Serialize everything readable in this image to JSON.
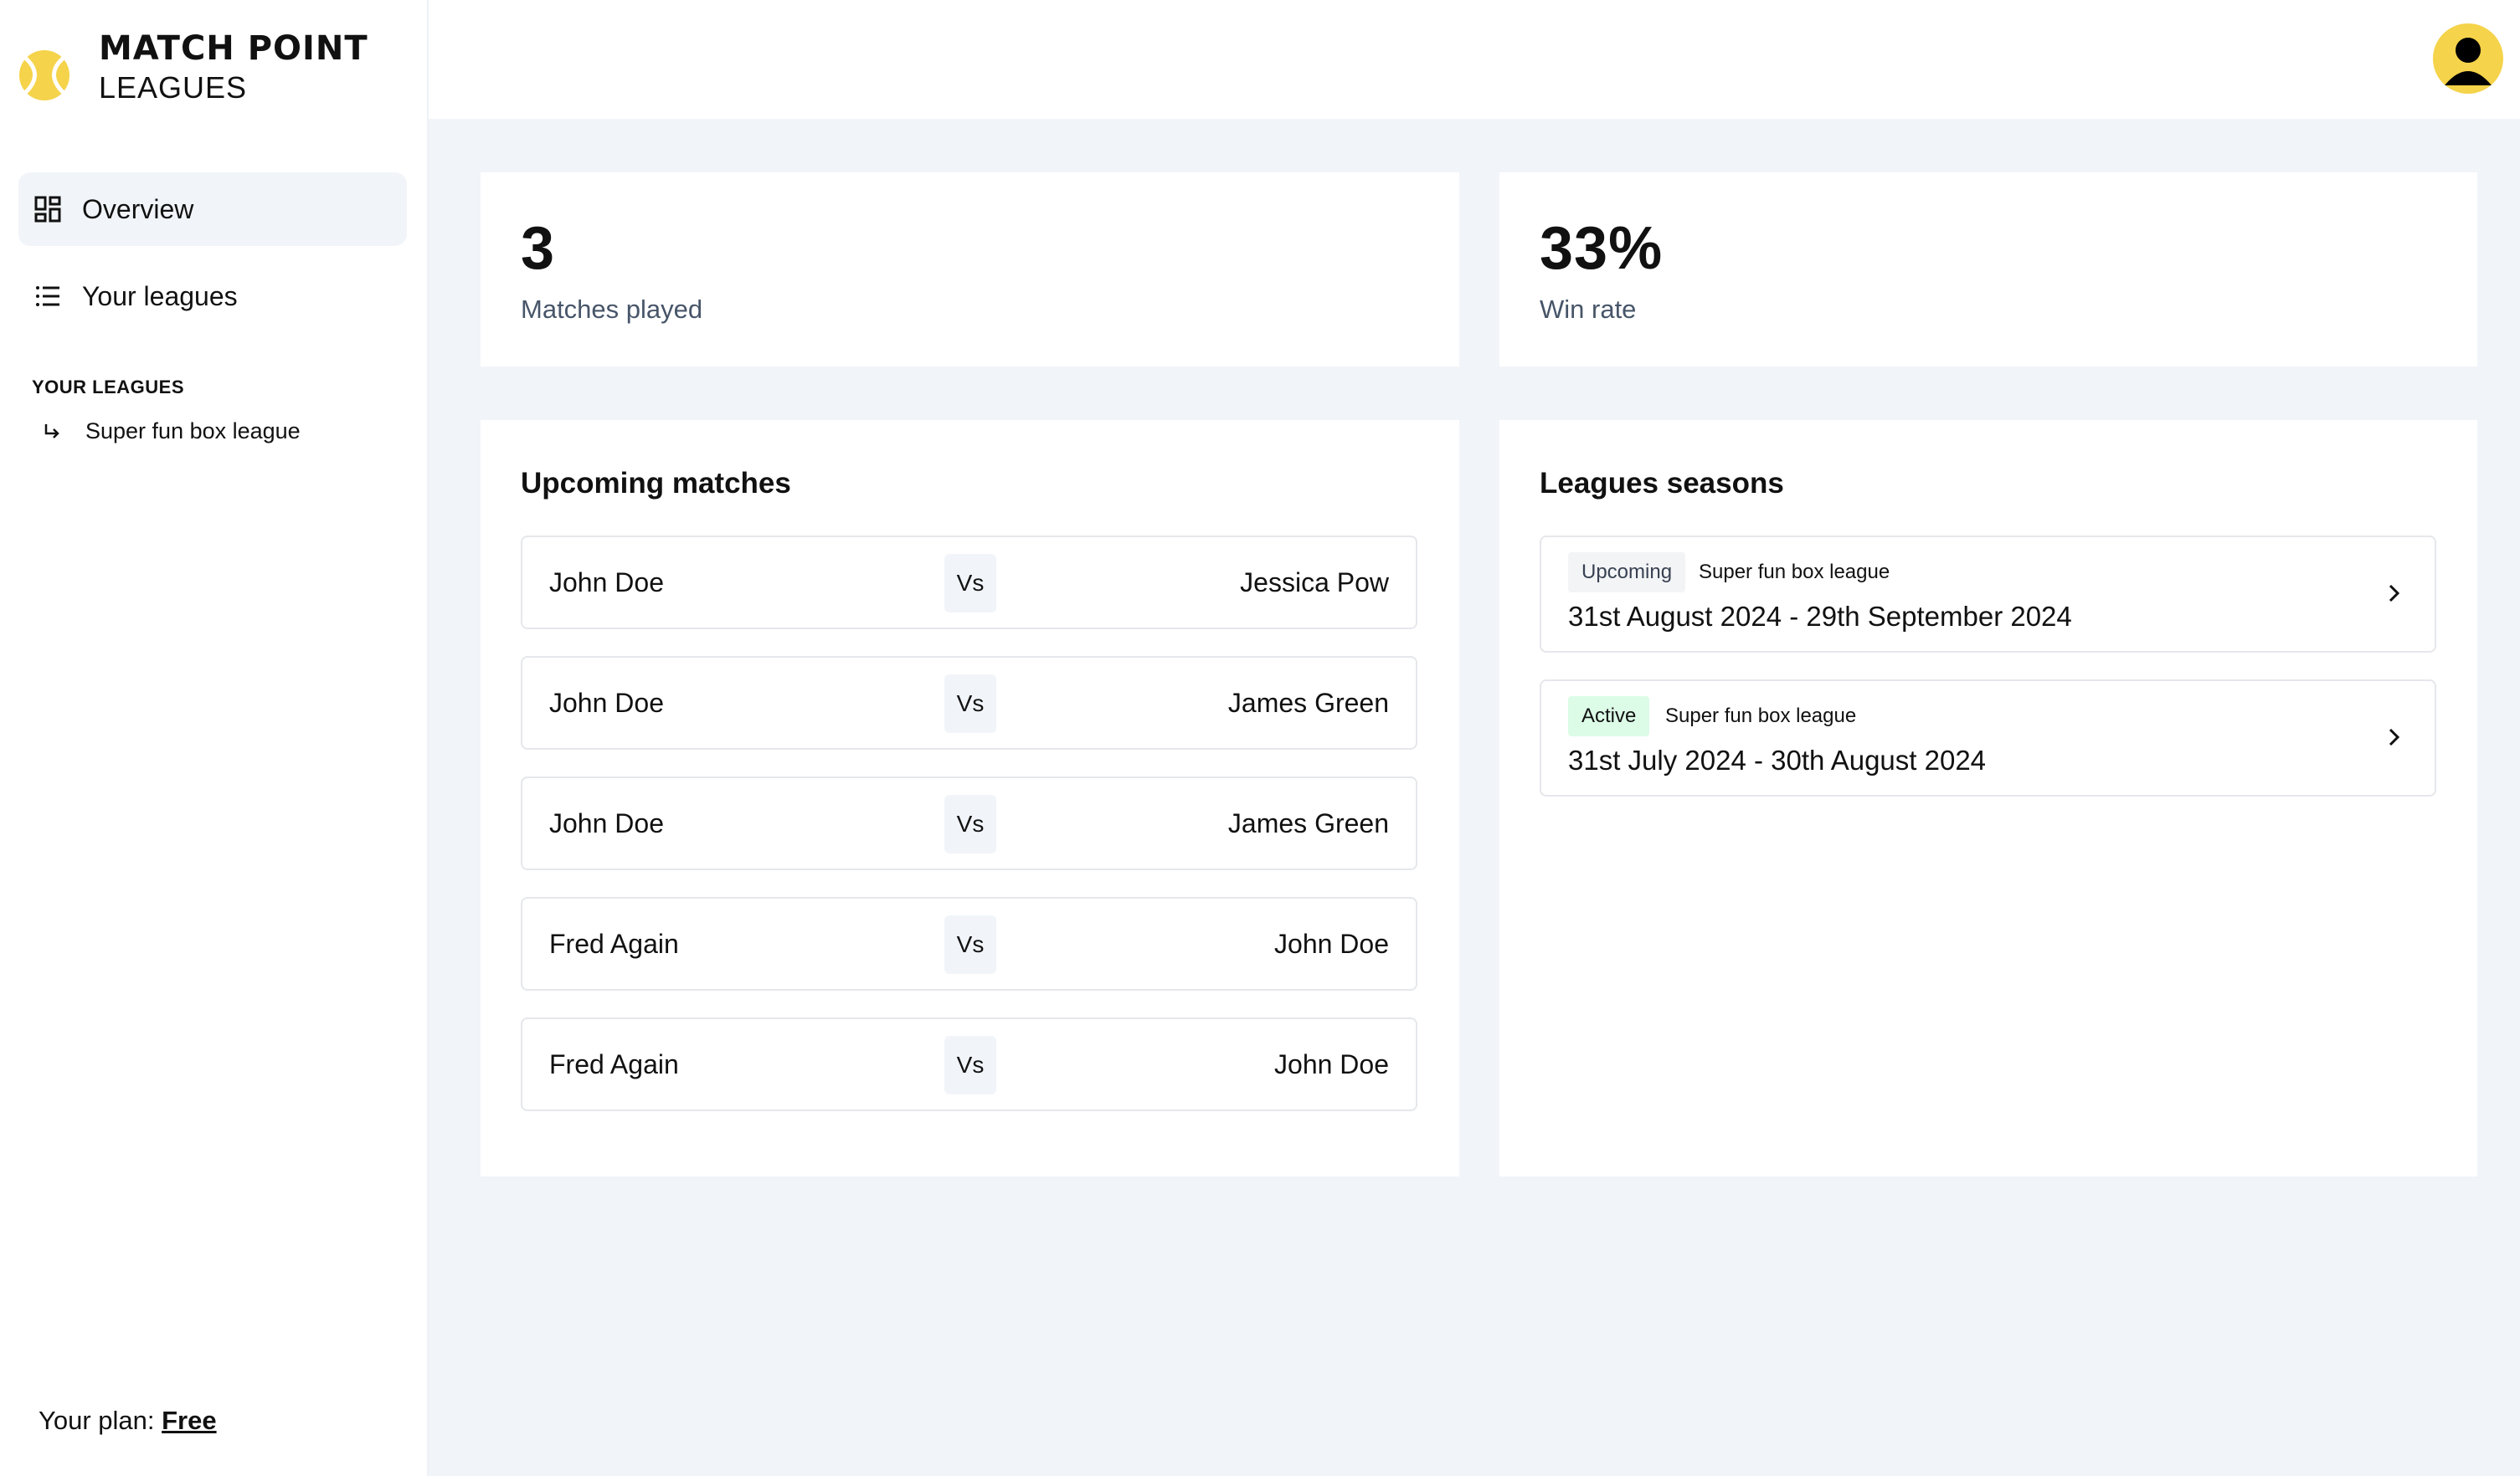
{
  "brand": {
    "title": "MATCH POINT",
    "subtitle": "LEAGUES"
  },
  "sidebar": {
    "nav": [
      {
        "label": "Overview",
        "icon": "dashboard-grid-icon",
        "active": true
      },
      {
        "label": "Your leagues",
        "icon": "list-icon",
        "active": false
      }
    ],
    "section_label": "YOUR LEAGUES",
    "leagues": [
      {
        "label": "Super fun box league",
        "icon": "arrow-return-icon"
      }
    ],
    "plan_prefix": "Your plan:",
    "plan_name": "Free"
  },
  "header": {
    "avatar_icon": "user-avatar-icon"
  },
  "stats": [
    {
      "value": "3",
      "label": "Matches played"
    },
    {
      "value": "33%",
      "label": "Win rate"
    }
  ],
  "upcoming": {
    "title": "Upcoming matches",
    "vs_label": "Vs",
    "matches": [
      {
        "player1": "John Doe",
        "player2": "Jessica Pow"
      },
      {
        "player1": "John Doe",
        "player2": "James Green"
      },
      {
        "player1": "John Doe",
        "player2": "James Green"
      },
      {
        "player1": "Fred Again",
        "player2": "John Doe"
      },
      {
        "player1": "Fred Again",
        "player2": "John Doe"
      }
    ]
  },
  "seasons": {
    "title": "Leagues seasons",
    "items": [
      {
        "status": "Upcoming",
        "league": "Super fun box league",
        "dates": "31st August 2024 - 29th September 2024"
      },
      {
        "status": "Active",
        "league": "Super fun box league",
        "dates": "31st July 2024 - 30th August 2024"
      }
    ]
  },
  "colors": {
    "accent": "#f5d34a",
    "active_badge": "#dcfce7",
    "background": "#f1f5f9"
  }
}
